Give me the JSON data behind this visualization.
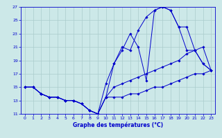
{
  "xlabel": "Graphe des températures (°C)",
  "bg_color": "#cce8e8",
  "grid_color": "#aacccc",
  "line_color": "#0000cc",
  "xlim": [
    -0.5,
    23.5
  ],
  "ylim": [
    11,
    27
  ],
  "xticks": [
    0,
    1,
    2,
    3,
    4,
    5,
    6,
    7,
    8,
    9,
    10,
    11,
    12,
    13,
    14,
    15,
    16,
    17,
    18,
    19,
    20,
    21,
    22,
    23
  ],
  "yticks": [
    11,
    13,
    15,
    17,
    19,
    21,
    23,
    25,
    27
  ],
  "lines": [
    {
      "x": [
        0,
        1,
        2,
        3,
        4,
        5,
        6,
        7,
        8,
        9,
        10,
        11,
        12,
        13,
        14,
        15,
        16,
        17,
        18,
        19,
        20,
        21,
        22,
        23
      ],
      "y": [
        15,
        15,
        14,
        13.5,
        13.5,
        13,
        13,
        12.5,
        11.5,
        11,
        13.5,
        13.5,
        13.5,
        14,
        14,
        14.5,
        15,
        15,
        15.5,
        16,
        16.5,
        17,
        17,
        17.5
      ]
    },
    {
      "x": [
        0,
        1,
        2,
        3,
        4,
        5,
        6,
        7,
        8,
        9,
        10,
        11,
        12,
        13,
        14,
        15,
        16,
        17,
        18,
        19,
        20,
        21,
        22,
        23
      ],
      "y": [
        15,
        15,
        14,
        13.5,
        13.5,
        13,
        13,
        12.5,
        11.5,
        11,
        13.5,
        15,
        15.5,
        16,
        16.5,
        17,
        17.5,
        18,
        18.5,
        19,
        20,
        20.5,
        21,
        17.5
      ]
    },
    {
      "x": [
        0,
        1,
        2,
        3,
        4,
        5,
        6,
        7,
        8,
        9,
        10,
        11,
        12,
        13,
        14,
        15,
        16,
        17,
        18,
        19,
        20,
        21,
        22,
        23
      ],
      "y": [
        15,
        15,
        14,
        13.5,
        13.5,
        13,
        13,
        12.5,
        11.5,
        11,
        13.5,
        18.5,
        20.5,
        23,
        21,
        16,
        26.5,
        27,
        26.5,
        24,
        20.5,
        20.5,
        18.5,
        17.5
      ]
    },
    {
      "x": [
        0,
        1,
        2,
        3,
        4,
        5,
        6,
        7,
        8,
        9,
        10,
        11,
        12,
        13,
        14,
        15,
        16,
        17,
        18,
        19,
        20,
        21,
        22,
        23
      ],
      "y": [
        15,
        15,
        14,
        13.5,
        13.5,
        13,
        13,
        12.5,
        11.5,
        11,
        15.5,
        18.5,
        21,
        20.5,
        23.5,
        25.5,
        26.5,
        27,
        26.5,
        24,
        24,
        20.5,
        18.5,
        17.5
      ]
    }
  ]
}
